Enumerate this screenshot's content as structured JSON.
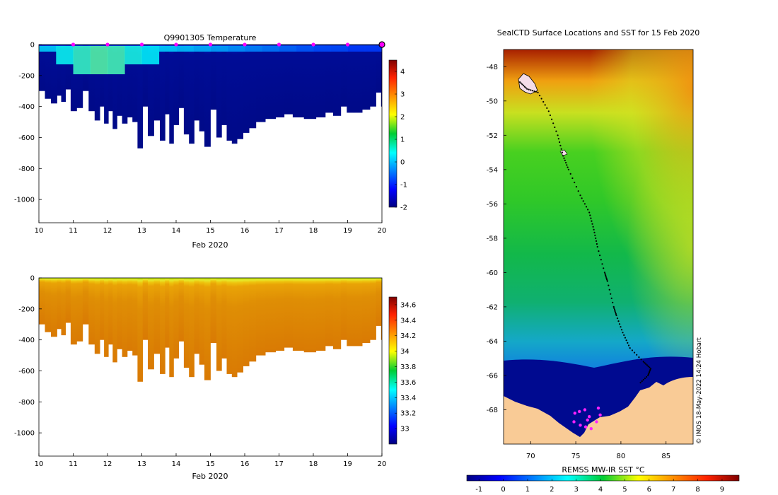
{
  "chart_data": [
    {
      "type": "heatmap",
      "id": "temperature-section",
      "title": "Q9901305  Temperature",
      "xlabel": "Feb 2020",
      "ylabel": "",
      "xlim": [
        10,
        20
      ],
      "ylim": [
        -1150,
        0
      ],
      "x_ticks": [
        "10",
        "11",
        "12",
        "13",
        "14",
        "15",
        "16",
        "17",
        "18",
        "19",
        "20"
      ],
      "y_ticks": [
        "0",
        "-200",
        "-400",
        "-600",
        "-800",
        "-1000"
      ],
      "colorbar": {
        "min": -2,
        "max": 4.5,
        "ticks": [
          "-2",
          "-1",
          "0",
          "1",
          "2",
          "3",
          "4"
        ],
        "colormap": "jet"
      },
      "profile_markers_x": [
        11,
        12,
        13,
        14,
        15,
        16,
        17,
        18,
        19,
        20
      ],
      "profiles": [
        {
          "t": 10.1,
          "d": 300
        },
        {
          "t": 10.25,
          "d": 350
        },
        {
          "t": 10.45,
          "d": 380
        },
        {
          "t": 10.6,
          "d": 330
        },
        {
          "t": 10.7,
          "d": 370
        },
        {
          "t": 10.85,
          "d": 290
        },
        {
          "t": 11.0,
          "d": 430
        },
        {
          "t": 11.2,
          "d": 410
        },
        {
          "t": 11.35,
          "d": 300
        },
        {
          "t": 11.55,
          "d": 430
        },
        {
          "t": 11.7,
          "d": 490
        },
        {
          "t": 11.85,
          "d": 400
        },
        {
          "t": 11.95,
          "d": 510
        },
        {
          "t": 12.1,
          "d": 430
        },
        {
          "t": 12.2,
          "d": 545
        },
        {
          "t": 12.35,
          "d": 460
        },
        {
          "t": 12.5,
          "d": 510
        },
        {
          "t": 12.65,
          "d": 470
        },
        {
          "t": 12.8,
          "d": 500
        },
        {
          "t": 12.95,
          "d": 670
        },
        {
          "t": 13.1,
          "d": 400
        },
        {
          "t": 13.25,
          "d": 590
        },
        {
          "t": 13.45,
          "d": 490
        },
        {
          "t": 13.6,
          "d": 620
        },
        {
          "t": 13.75,
          "d": 450
        },
        {
          "t": 13.85,
          "d": 640
        },
        {
          "t": 14.0,
          "d": 520
        },
        {
          "t": 14.15,
          "d": 410
        },
        {
          "t": 14.3,
          "d": 580
        },
        {
          "t": 14.45,
          "d": 640
        },
        {
          "t": 14.6,
          "d": 490
        },
        {
          "t": 14.75,
          "d": 560
        },
        {
          "t": 14.9,
          "d": 660
        },
        {
          "t": 15.1,
          "d": 420
        },
        {
          "t": 15.25,
          "d": 600
        },
        {
          "t": 15.4,
          "d": 520
        },
        {
          "t": 15.55,
          "d": 620
        },
        {
          "t": 15.7,
          "d": 640
        },
        {
          "t": 15.85,
          "d": 610
        },
        {
          "t": 16.05,
          "d": 570
        },
        {
          "t": 16.2,
          "d": 540
        },
        {
          "t": 16.45,
          "d": 500
        },
        {
          "t": 16.75,
          "d": 480
        },
        {
          "t": 17.05,
          "d": 470
        },
        {
          "t": 17.25,
          "d": 450
        },
        {
          "t": 17.55,
          "d": 470
        },
        {
          "t": 17.9,
          "d": 480
        },
        {
          "t": 18.25,
          "d": 470
        },
        {
          "t": 18.45,
          "d": 440
        },
        {
          "t": 18.7,
          "d": 460
        },
        {
          "t": 18.9,
          "d": 400
        },
        {
          "t": 19.05,
          "d": 440
        },
        {
          "t": 19.3,
          "d": 440
        },
        {
          "t": 19.55,
          "d": 420
        },
        {
          "t": 19.75,
          "d": 400
        },
        {
          "t": 19.9,
          "d": 310
        },
        {
          "t": 20.05,
          "d": 400
        }
      ],
      "surface_values": [
        0.2,
        0.5,
        0.8,
        1.0,
        0.9,
        0.6,
        0.4,
        0.2,
        0.1,
        0.0,
        -0.1,
        -0.2,
        -0.3,
        -0.4,
        -0.5,
        -0.6,
        -0.7,
        -0.7,
        -0.8,
        -0.8
      ],
      "deep_value": -1.6
    },
    {
      "type": "heatmap",
      "id": "salinity-section",
      "title": "",
      "xlabel": "Feb 2020",
      "ylabel": "",
      "xlim": [
        10,
        20
      ],
      "ylim": [
        -1150,
        0
      ],
      "x_ticks": [
        "10",
        "11",
        "12",
        "13",
        "14",
        "15",
        "16",
        "17",
        "18",
        "19",
        "20"
      ],
      "y_ticks": [
        "0",
        "-200",
        "-400",
        "-600",
        "-800",
        "-1000"
      ],
      "colorbar": {
        "min": 32.8,
        "max": 34.7,
        "ticks": [
          "33",
          "33.2",
          "33.4",
          "33.6",
          "33.8",
          "34",
          "34.2",
          "34.4",
          "34.6"
        ],
        "colormap": "jet"
      },
      "surface_value": 33.95,
      "deep_value": 34.5
    },
    {
      "type": "map",
      "id": "sst-map",
      "title": "SealCTD Surface Locations and SST for 15 Feb 2020",
      "xlim": [
        67,
        88
      ],
      "ylim": [
        -70,
        -47
      ],
      "x_ticks": [
        "70",
        "75",
        "80",
        "85"
      ],
      "y_ticks": [
        "-48",
        "-50",
        "-52",
        "-54",
        "-56",
        "-58",
        "-60",
        "-62",
        "-64",
        "-66",
        "-68"
      ],
      "colorbar": {
        "label": "REMSS MW-IR SST °C",
        "min": -1.5,
        "max": 9.7,
        "ticks": [
          "-1",
          "0",
          "1",
          "2",
          "3",
          "4",
          "5",
          "6",
          "7",
          "8",
          "9"
        ],
        "colormap": "jet"
      },
      "credit": "© IMOS 18-May-2022 14:24 Hobart",
      "track": [
        [
          68.8,
          -48.9
        ],
        [
          69.6,
          -49.3
        ],
        [
          70.8,
          -49.5
        ],
        [
          72.0,
          -50.6
        ],
        [
          73.0,
          -52.0
        ],
        [
          73.6,
          -53.2
        ],
        [
          74.2,
          -54.0
        ],
        [
          75.5,
          -55.5
        ],
        [
          76.5,
          -56.5
        ],
        [
          77.0,
          -57.5
        ],
        [
          77.4,
          -58.5
        ],
        [
          78.2,
          -60.0
        ],
        [
          78.5,
          -60.5
        ],
        [
          79.2,
          -62.0
        ],
        [
          79.5,
          -62.5
        ],
        [
          80.2,
          -63.5
        ],
        [
          81.0,
          -64.4
        ],
        [
          82.5,
          -65.2
        ],
        [
          83.3,
          -65.6
        ],
        [
          83.0,
          -66.0
        ],
        [
          82.0,
          -66.5
        ]
      ],
      "surface_locations": [
        [
          74.9,
          -68.2
        ],
        [
          75.4,
          -68.1
        ],
        [
          76.0,
          -68.0
        ],
        [
          76.5,
          -68.4
        ],
        [
          77.5,
          -67.9
        ],
        [
          77.7,
          -68.3
        ],
        [
          74.8,
          -68.7
        ],
        [
          75.5,
          -68.9
        ],
        [
          76.1,
          -69.0
        ],
        [
          76.7,
          -69.1
        ],
        [
          77.3,
          -68.7
        ],
        [
          76.3,
          -68.6
        ]
      ]
    }
  ]
}
